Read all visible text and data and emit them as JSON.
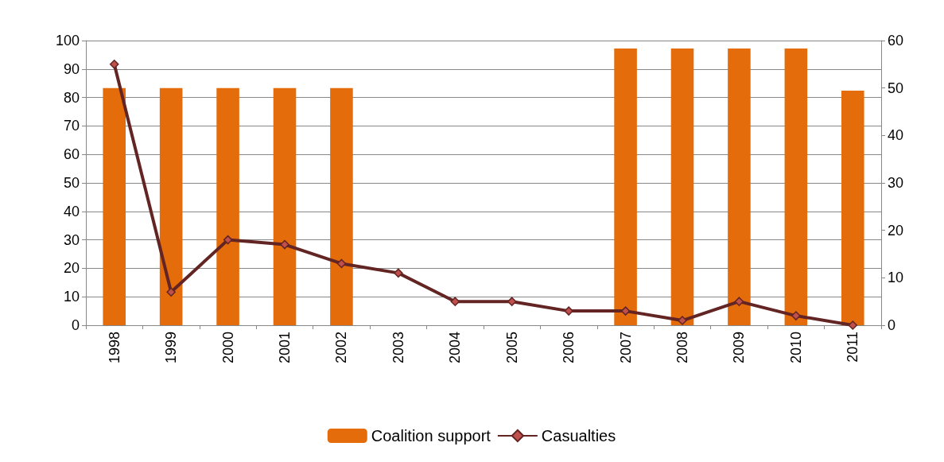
{
  "chart_data": {
    "type": "bar",
    "categories": [
      "1998",
      "1999",
      "2000",
      "2001",
      "2002",
      "2003",
      "2004",
      "2005",
      "2006",
      "2007",
      "2008",
      "2009",
      "2010",
      "2011"
    ],
    "series": [
      {
        "name": "Coalition support",
        "color": "#e46c0a",
        "values": [
          83.3,
          83.3,
          83.3,
          83.3,
          83.3,
          null,
          null,
          null,
          null,
          97.2,
          97.2,
          97.2,
          97.2,
          82.4
        ]
      },
      {
        "name": "Casualties",
        "type": "line",
        "axis": "y2",
        "color": "#632523",
        "marker": "diamond",
        "values": [
          55,
          7,
          18,
          17,
          13,
          11,
          5,
          5,
          3,
          3,
          1,
          5,
          2,
          0
        ]
      }
    ],
    "ylim": [
      0,
      100
    ],
    "yticks": [
      0,
      10,
      20,
      30,
      40,
      50,
      60,
      70,
      80,
      90,
      100
    ],
    "y2lim": [
      0,
      60
    ],
    "y2ticks": [
      0,
      10,
      20,
      30,
      40,
      50,
      60
    ],
    "grid": "y",
    "legend": "bottom"
  }
}
